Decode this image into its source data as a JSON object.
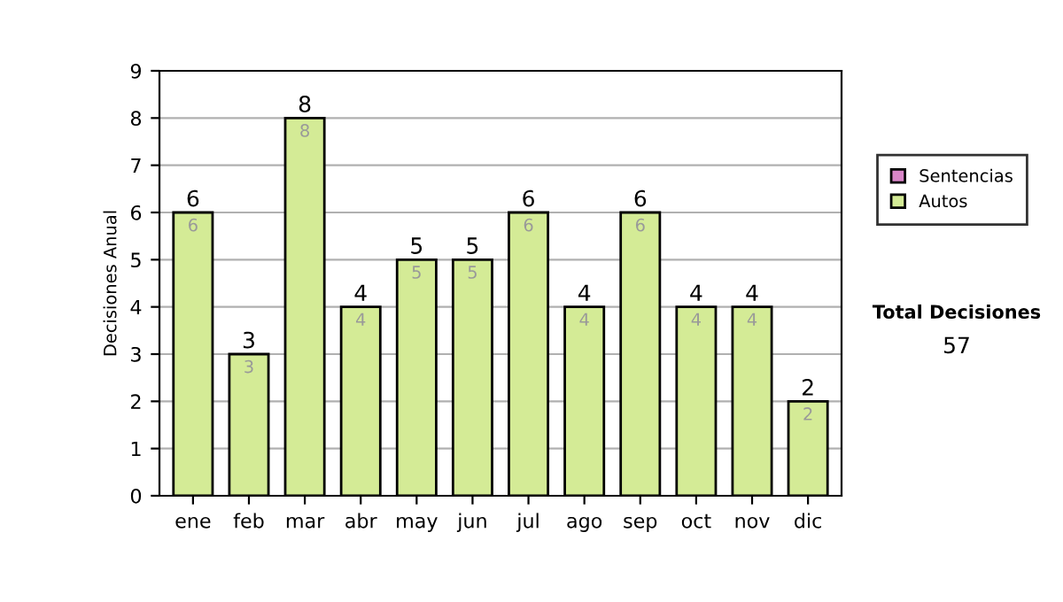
{
  "chart_data": {
    "type": "bar",
    "stacked": true,
    "ylabel": "Decisiones Anual",
    "categories": [
      "ene",
      "feb",
      "mar",
      "abr",
      "may",
      "jun",
      "jul",
      "ago",
      "sep",
      "oct",
      "nov",
      "dic"
    ],
    "series": [
      {
        "name": "Sentencias",
        "color": "#d986c8",
        "values": [
          0,
          0,
          0,
          0,
          0,
          0,
          0,
          0,
          0,
          0,
          0,
          0
        ]
      },
      {
        "name": "Autos",
        "color": "#d4eb96",
        "values": [
          6,
          3,
          8,
          4,
          5,
          5,
          6,
          4,
          6,
          4,
          4,
          2
        ],
        "value_labels": [
          "6",
          "3",
          "8",
          "4",
          "5",
          "5",
          "6",
          "4",
          "6",
          "4",
          "4",
          "2"
        ]
      }
    ],
    "totals": [
      "6",
      "3",
      "8",
      "4",
      "5",
      "5",
      "6",
      "4",
      "6",
      "4",
      "4",
      "2"
    ],
    "ylim": [
      0,
      9
    ],
    "yticks": [
      0,
      1,
      2,
      3,
      4,
      5,
      6,
      7,
      8,
      9
    ],
    "grid": "y",
    "legend": "right",
    "annotations": [
      "Total Decisiones",
      "57"
    ]
  }
}
